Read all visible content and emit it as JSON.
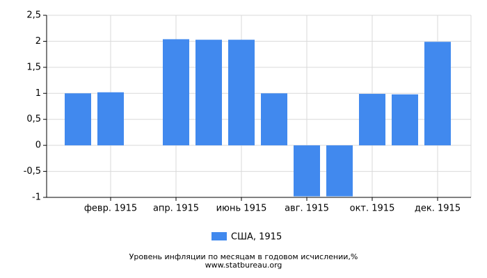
{
  "chart_data": {
    "type": "bar",
    "title": "Уровень инфляции по месяцам в годовом исчислении,%",
    "subtitle": "www.statbureau.org",
    "categories": [
      null,
      "февр. 1915",
      null,
      "апр. 1915",
      null,
      "июнь 1915",
      null,
      "авг. 1915",
      null,
      "окт. 1915",
      null,
      "дек. 1915"
    ],
    "series": [
      {
        "name": "США, 1915",
        "color": "#4189ee",
        "values": [
          1.0,
          1.02,
          0,
          2.04,
          2.03,
          2.03,
          1.0,
          -0.98,
          -0.98,
          0.99,
          0.98,
          1.99
        ]
      }
    ],
    "ylim": [
      -1,
      2.5
    ],
    "yticks": [
      -1,
      {
        "value": -0.5,
        "label": "-0,5"
      },
      0,
      {
        "value": 0.5,
        "label": "0,5"
      },
      1,
      {
        "value": 1.5,
        "label": "1,5"
      },
      2,
      {
        "value": 2.5,
        "label": "2,5"
      }
    ],
    "grid": true
  }
}
